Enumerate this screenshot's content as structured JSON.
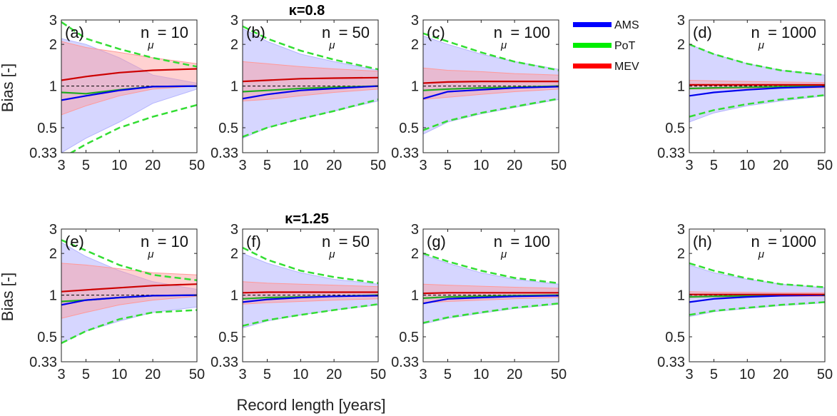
{
  "figure": {
    "row_titles": [
      "κ=0.8",
      "κ=1.25"
    ],
    "ylabel": "Bias [-]",
    "xlabel": "Record length [years]",
    "legend": [
      {
        "name": "AMS",
        "color": "#0000ff"
      },
      {
        "name": "PoT",
        "color": "#00ee00"
      },
      {
        "name": "MEV",
        "color": "#ff0000"
      }
    ],
    "fill_colors": {
      "AMS": "#b4b4ff",
      "PoT": "#c0f0c0",
      "MEV": "#ff9999"
    }
  },
  "chart_data": [
    {
      "type": "area",
      "panel": "(a)",
      "n_label": "n",
      "n_sub": "μ",
      "n_value": "= 10",
      "kappa": "0.8",
      "x": [
        3,
        5,
        10,
        20,
        50
      ],
      "xticks": [
        "3",
        "5",
        "10",
        "20",
        "50"
      ],
      "yticks": [
        "0.33",
        "0.5",
        "1",
        "2",
        "3"
      ],
      "xscale": "log",
      "yscale": "log",
      "ylim": [
        0.33,
        3
      ],
      "xlim": [
        3,
        50
      ],
      "series": [
        {
          "name": "AMS",
          "median": [
            0.79,
            0.85,
            0.93,
            0.99,
            1.0
          ],
          "lower": [
            0.33,
            0.42,
            0.55,
            0.75,
            0.95
          ],
          "upper": [
            2.2,
            2.0,
            1.6,
            1.2,
            1.05
          ]
        },
        {
          "name": "PoT",
          "median": [
            0.9,
            0.88,
            0.94,
            0.99,
            1.0
          ],
          "lower": [
            0.3,
            0.38,
            0.5,
            0.6,
            0.73
          ],
          "upper": [
            2.9,
            2.2,
            1.85,
            1.6,
            1.38
          ]
        },
        {
          "name": "MEV",
          "median": [
            1.1,
            1.17,
            1.25,
            1.3,
            1.33
          ],
          "lower": [
            0.62,
            0.72,
            0.85,
            0.95,
            1.0
          ],
          "upper": [
            2.1,
            1.9,
            1.75,
            1.6,
            1.45
          ]
        }
      ]
    },
    {
      "type": "area",
      "panel": "(b)",
      "n_label": "n",
      "n_sub": "μ",
      "n_value": "= 50",
      "kappa": "0.8",
      "x": [
        3,
        5,
        10,
        20,
        50
      ],
      "xticks": [
        "3",
        "5",
        "10",
        "20",
        "50"
      ],
      "yticks": [
        "0.33",
        "0.5",
        "1",
        "2",
        "3"
      ],
      "xscale": "log",
      "yscale": "log",
      "ylim": [
        0.33,
        3
      ],
      "xlim": [
        3,
        50
      ],
      "series": [
        {
          "name": "AMS",
          "median": [
            0.81,
            0.87,
            0.93,
            0.96,
            1.0
          ],
          "lower": [
            0.42,
            0.5,
            0.58,
            0.66,
            0.78
          ],
          "upper": [
            2.6,
            2.1,
            1.7,
            1.5,
            1.3
          ]
        },
        {
          "name": "PoT",
          "median": [
            0.91,
            0.93,
            0.96,
            0.98,
            1.0
          ],
          "lower": [
            0.43,
            0.5,
            0.58,
            0.66,
            0.8
          ],
          "upper": [
            2.7,
            2.2,
            1.8,
            1.55,
            1.32
          ]
        },
        {
          "name": "MEV",
          "median": [
            1.08,
            1.1,
            1.13,
            1.14,
            1.15
          ],
          "lower": [
            0.78,
            0.8,
            0.85,
            0.9,
            0.95
          ],
          "upper": [
            1.5,
            1.45,
            1.38,
            1.33,
            1.28
          ]
        }
      ]
    },
    {
      "type": "area",
      "panel": "(c)",
      "n_label": "n",
      "n_sub": "μ",
      "n_value": "= 100",
      "kappa": "0.8",
      "x": [
        3,
        5,
        10,
        20,
        50
      ],
      "xticks": [
        "3",
        "5",
        "10",
        "20",
        "50"
      ],
      "yticks": [
        "0.33",
        "0.5",
        "1",
        "2",
        "3"
      ],
      "xscale": "log",
      "yscale": "log",
      "ylim": [
        0.33,
        3
      ],
      "xlim": [
        3,
        50
      ],
      "series": [
        {
          "name": "AMS",
          "median": [
            0.81,
            0.91,
            0.94,
            0.97,
            0.99
          ],
          "lower": [
            0.45,
            0.55,
            0.63,
            0.7,
            0.8
          ],
          "upper": [
            2.3,
            2.0,
            1.7,
            1.5,
            1.32
          ]
        },
        {
          "name": "PoT",
          "median": [
            0.93,
            0.95,
            0.97,
            0.98,
            1.0
          ],
          "lower": [
            0.48,
            0.56,
            0.64,
            0.71,
            0.81
          ],
          "upper": [
            2.4,
            2.1,
            1.75,
            1.5,
            1.3
          ]
        },
        {
          "name": "MEV",
          "median": [
            1.05,
            1.07,
            1.08,
            1.08,
            1.08
          ],
          "lower": [
            0.8,
            0.83,
            0.87,
            0.91,
            0.95
          ],
          "upper": [
            1.35,
            1.3,
            1.27,
            1.23,
            1.2
          ]
        }
      ]
    },
    {
      "type": "area",
      "panel": "(d)",
      "n_label": "n",
      "n_sub": "μ",
      "n_value": "= 1000",
      "kappa": "0.8",
      "x": [
        3,
        5,
        10,
        20,
        50
      ],
      "xticks": [
        "3",
        "5",
        "10",
        "20",
        "50"
      ],
      "yticks": [
        "0.33",
        "0.5",
        "1",
        "2",
        "3"
      ],
      "xscale": "log",
      "yscale": "log",
      "ylim": [
        0.33,
        3
      ],
      "xlim": [
        3,
        50
      ],
      "series": [
        {
          "name": "AMS",
          "median": [
            0.85,
            0.9,
            0.94,
            0.97,
            0.99
          ],
          "lower": [
            0.55,
            0.64,
            0.72,
            0.78,
            0.85
          ],
          "upper": [
            2.0,
            1.7,
            1.45,
            1.3,
            1.2
          ]
        },
        {
          "name": "PoT",
          "median": [
            0.96,
            0.97,
            0.98,
            0.99,
            1.0
          ],
          "lower": [
            0.6,
            0.67,
            0.74,
            0.8,
            0.86
          ],
          "upper": [
            2.0,
            1.7,
            1.45,
            1.3,
            1.2
          ]
        },
        {
          "name": "MEV",
          "median": [
            1.02,
            1.02,
            1.02,
            1.02,
            1.02
          ],
          "lower": [
            0.95,
            0.95,
            0.96,
            0.97,
            0.97
          ],
          "upper": [
            1.1,
            1.09,
            1.08,
            1.07,
            1.06
          ]
        }
      ]
    },
    {
      "type": "area",
      "panel": "(e)",
      "n_label": "n",
      "n_sub": "μ",
      "n_value": "= 10",
      "kappa": "1.25",
      "x": [
        3,
        5,
        10,
        20,
        50
      ],
      "xticks": [
        "3",
        "5",
        "10",
        "20",
        "50"
      ],
      "yticks": [
        "0.33",
        "0.5",
        "1",
        "2",
        "3"
      ],
      "xscale": "log",
      "yscale": "log",
      "ylim": [
        0.33,
        3
      ],
      "xlim": [
        3,
        50
      ],
      "series": [
        {
          "name": "AMS",
          "median": [
            0.85,
            0.92,
            0.96,
            0.99,
            1.0
          ],
          "lower": [
            0.45,
            0.55,
            0.65,
            0.75,
            0.82
          ],
          "upper": [
            2.4,
            1.9,
            1.5,
            1.25,
            1.1
          ]
        },
        {
          "name": "PoT",
          "median": [
            0.9,
            0.92,
            0.96,
            0.99,
            1.0
          ],
          "lower": [
            0.45,
            0.55,
            0.67,
            0.75,
            0.78
          ],
          "upper": [
            2.5,
            2.1,
            1.65,
            1.4,
            1.28
          ]
        },
        {
          "name": "MEV",
          "median": [
            1.06,
            1.09,
            1.13,
            1.17,
            1.2
          ],
          "lower": [
            0.68,
            0.75,
            0.85,
            0.92,
            0.98
          ],
          "upper": [
            1.7,
            1.65,
            1.55,
            1.45,
            1.4
          ]
        }
      ]
    },
    {
      "type": "area",
      "panel": "(f)",
      "n_label": "n",
      "n_sub": "μ",
      "n_value": "= 50",
      "kappa": "1.25",
      "x": [
        3,
        5,
        10,
        20,
        50
      ],
      "xticks": [
        "3",
        "5",
        "10",
        "20",
        "50"
      ],
      "yticks": [
        "0.33",
        "0.5",
        "1",
        "2",
        "3"
      ],
      "xscale": "log",
      "yscale": "log",
      "ylim": [
        0.33,
        3
      ],
      "xlim": [
        3,
        50
      ],
      "series": [
        {
          "name": "AMS",
          "median": [
            0.89,
            0.93,
            0.96,
            0.98,
            0.99
          ],
          "lower": [
            0.58,
            0.65,
            0.72,
            0.78,
            0.85
          ],
          "upper": [
            2.0,
            1.7,
            1.45,
            1.3,
            1.2
          ]
        },
        {
          "name": "PoT",
          "median": [
            0.94,
            0.96,
            0.97,
            0.98,
            1.0
          ],
          "lower": [
            0.6,
            0.66,
            0.72,
            0.78,
            0.86
          ],
          "upper": [
            2.2,
            1.8,
            1.5,
            1.35,
            1.22
          ]
        },
        {
          "name": "MEV",
          "median": [
            1.04,
            1.05,
            1.05,
            1.05,
            1.05
          ],
          "lower": [
            0.86,
            0.88,
            0.9,
            0.92,
            0.94
          ],
          "upper": [
            1.25,
            1.22,
            1.2,
            1.18,
            1.15
          ]
        }
      ]
    },
    {
      "type": "area",
      "panel": "(g)",
      "n_label": "n",
      "n_sub": "μ",
      "n_value": "= 100",
      "kappa": "1.25",
      "x": [
        3,
        5,
        10,
        20,
        50
      ],
      "xticks": [
        "3",
        "5",
        "10",
        "20",
        "50"
      ],
      "yticks": [
        "0.33",
        "0.5",
        "1",
        "2",
        "3"
      ],
      "xscale": "log",
      "yscale": "log",
      "ylim": [
        0.33,
        3
      ],
      "xlim": [
        3,
        50
      ],
      "series": [
        {
          "name": "AMS",
          "median": [
            0.87,
            0.94,
            0.96,
            0.98,
            0.99
          ],
          "lower": [
            0.62,
            0.68,
            0.74,
            0.8,
            0.86
          ],
          "upper": [
            1.95,
            1.7,
            1.45,
            1.3,
            1.2
          ]
        },
        {
          "name": "PoT",
          "median": [
            0.95,
            0.97,
            0.98,
            0.99,
            1.0
          ],
          "lower": [
            0.63,
            0.69,
            0.75,
            0.81,
            0.87
          ],
          "upper": [
            2.0,
            1.75,
            1.5,
            1.33,
            1.22
          ]
        },
        {
          "name": "MEV",
          "median": [
            1.03,
            1.04,
            1.04,
            1.04,
            1.04
          ],
          "lower": [
            0.88,
            0.9,
            0.92,
            0.94,
            0.96
          ],
          "upper": [
            1.2,
            1.18,
            1.16,
            1.14,
            1.12
          ]
        }
      ]
    },
    {
      "type": "area",
      "panel": "(h)",
      "n_label": "n",
      "n_sub": "μ",
      "n_value": "= 1000",
      "kappa": "1.25",
      "x": [
        3,
        5,
        10,
        20,
        50
      ],
      "xticks": [
        "3",
        "5",
        "10",
        "20",
        "50"
      ],
      "yticks": [
        "0.33",
        "0.5",
        "1",
        "2",
        "3"
      ],
      "xscale": "log",
      "yscale": "log",
      "ylim": [
        0.33,
        3
      ],
      "xlim": [
        3,
        50
      ],
      "series": [
        {
          "name": "AMS",
          "median": [
            0.89,
            0.94,
            0.97,
            0.99,
            1.0
          ],
          "lower": [
            0.7,
            0.76,
            0.8,
            0.84,
            0.88
          ],
          "upper": [
            1.65,
            1.45,
            1.3,
            1.2,
            1.13
          ]
        },
        {
          "name": "PoT",
          "median": [
            0.97,
            0.98,
            0.99,
            1.0,
            1.0
          ],
          "lower": [
            0.72,
            0.77,
            0.81,
            0.85,
            0.89
          ],
          "upper": [
            1.7,
            1.5,
            1.32,
            1.2,
            1.14
          ]
        },
        {
          "name": "MEV",
          "median": [
            1.01,
            1.01,
            1.01,
            1.01,
            1.01
          ],
          "lower": [
            0.96,
            0.97,
            0.97,
            0.98,
            0.98
          ],
          "upper": [
            1.06,
            1.05,
            1.05,
            1.04,
            1.04
          ]
        }
      ]
    }
  ]
}
